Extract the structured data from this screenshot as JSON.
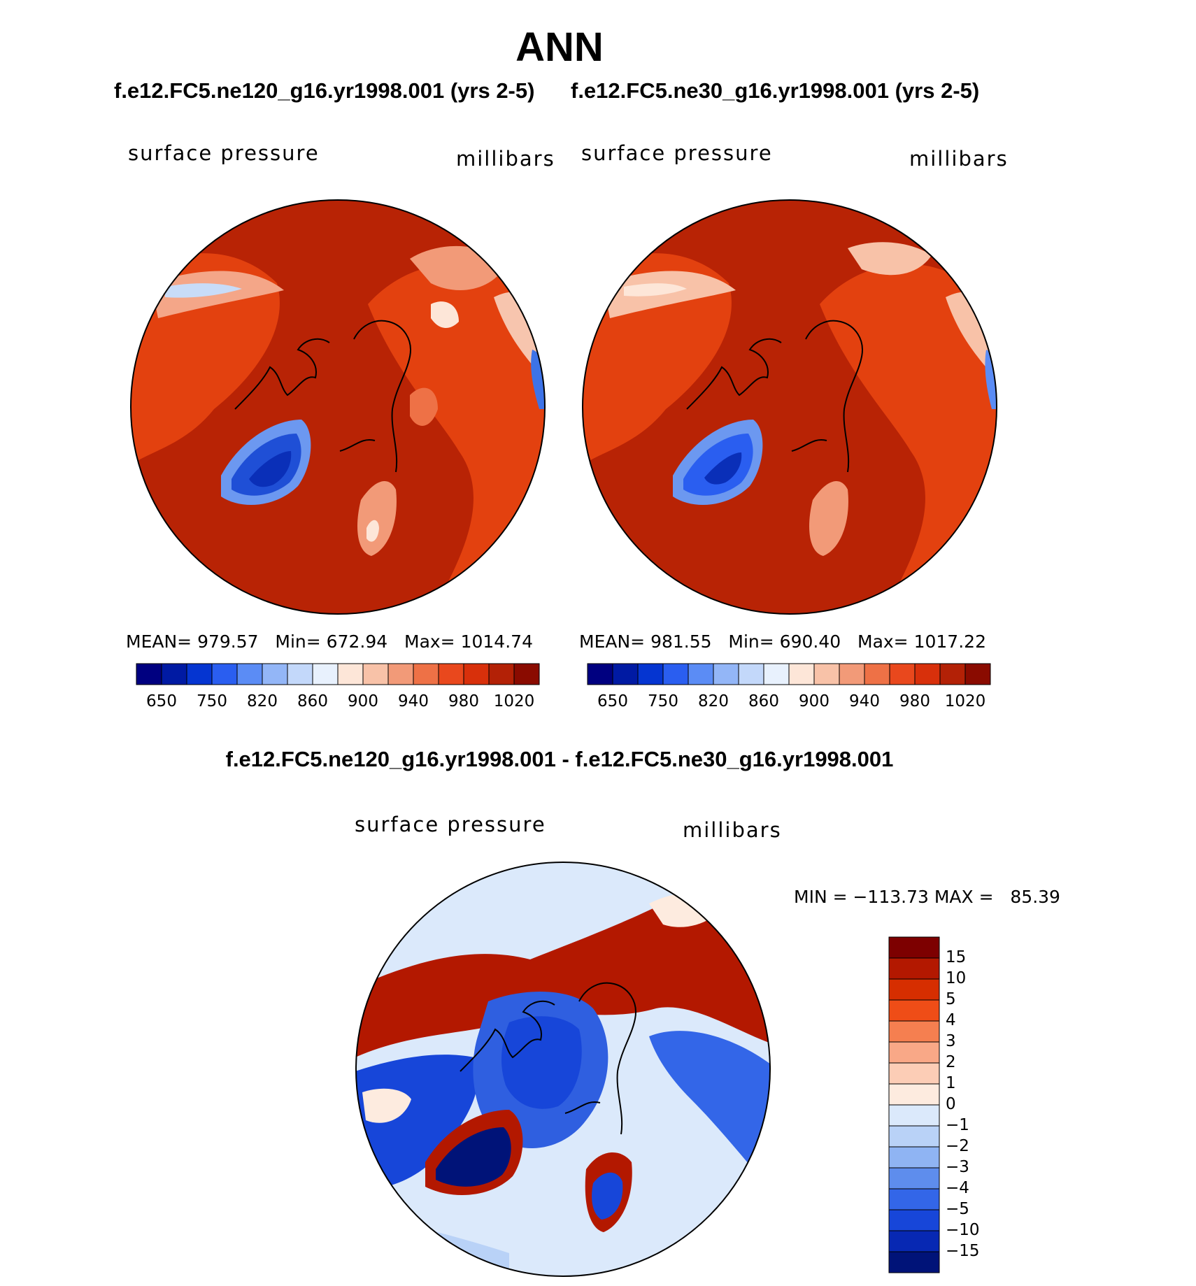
{
  "figure": {
    "title": "ANN",
    "panels": [
      {
        "case_title": "f.e12.FC5.ne120_g16.yr1998.001 (yrs 2-5)",
        "variable_label": "surface pressure",
        "units_label": "millibars",
        "stats": {
          "mean_label": "MEAN=",
          "mean": "979.57",
          "min_label": "Min=",
          "min": "672.94",
          "max_label": "Max=",
          "max": "1014.74"
        }
      },
      {
        "case_title": "f.e12.FC5.ne30_g16.yr1998.001 (yrs 2-5)",
        "variable_label": "surface pressure",
        "units_label": "millibars",
        "stats": {
          "mean_label": "MEAN=",
          "mean": "981.55",
          "min_label": "Min=",
          "min": "690.40",
          "max_label": "Max=",
          "max": "1017.22"
        }
      }
    ],
    "colorbar_top": {
      "tick_labels": [
        "650",
        "750",
        "820",
        "860",
        "900",
        "940",
        "980",
        "1020"
      ],
      "colors": [
        "#000080",
        "#001aa3",
        "#0535d1",
        "#2a5ef0",
        "#5b8cf5",
        "#93b6f7",
        "#c3d8fa",
        "#e8f1fd",
        "#fde6d8",
        "#f8c2a8",
        "#f29a78",
        "#ee7146",
        "#e9481d",
        "#d8300b",
        "#b32106",
        "#8a0b00"
      ]
    },
    "difference": {
      "title": "f.e12.FC5.ne120_g16.yr1998.001 - f.e12.FC5.ne30_g16.yr1998.001",
      "variable_label": "surface pressure",
      "units_label": "millibars",
      "stats_text": "MIN = −113.73 MAX =   85.39",
      "colorbar": {
        "tick_labels": [
          "15",
          "10",
          "5",
          "4",
          "3",
          "2",
          "1",
          "0",
          "−1",
          "−2",
          "−3",
          "−4",
          "−5",
          "−10",
          "−15"
        ],
        "colors": [
          "#7d0000",
          "#b31800",
          "#d62e00",
          "#ef4d17",
          "#f57f50",
          "#f9a887",
          "#fccdb6",
          "#fdebdf",
          "#dbe9fb",
          "#b9d2f7",
          "#8fb4f3",
          "#5e8ded",
          "#3366e8",
          "#1746d9",
          "#0728b3",
          "#001378"
        ]
      }
    },
    "colors": {
      "ocean_red": "#b82305",
      "land_orange": "#e3410f",
      "greenland_blue": "#1f4fd6",
      "diff_ocean_blue": "#2f5fe0"
    }
  }
}
